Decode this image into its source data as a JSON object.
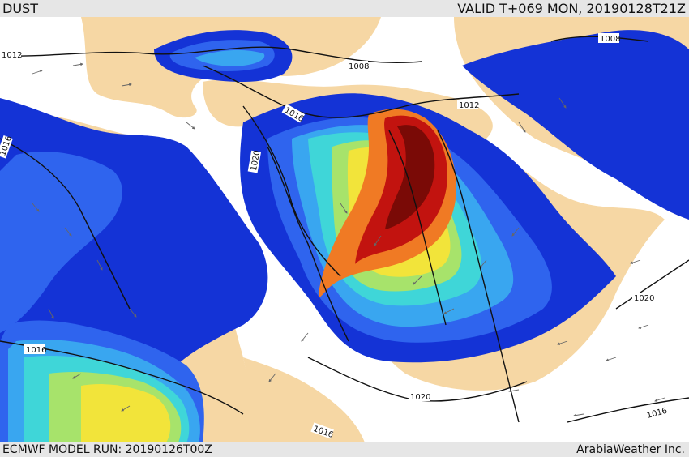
{
  "header": {
    "product": "DUST",
    "valid_time": "VALID T+069 MON, 20190128T21Z"
  },
  "footer": {
    "model_run": "ECMWF MODEL RUN: 20190126T00Z",
    "credit": "ArabiaWeather Inc."
  },
  "map": {
    "isobar_labels": [
      "1012",
      "1016",
      "1008",
      "1012",
      "1008",
      "1020",
      "1016",
      "1016",
      "1020",
      "1020",
      "1016",
      "1016"
    ],
    "colors": {
      "sea": "#ffffff",
      "land": "#f6d7a4",
      "dust_blue_deep": "#1433d6",
      "dust_blue": "#2f64ee",
      "dust_light_blue": "#39a6f0",
      "dust_cyan": "#3fd6d8",
      "dust_green": "#a7e36b",
      "dust_yellow": "#f2e43a",
      "dust_orange": "#f07a24",
      "dust_red": "#c2130f",
      "dust_dark_red": "#7a0a06",
      "isobar": "#111111"
    }
  }
}
